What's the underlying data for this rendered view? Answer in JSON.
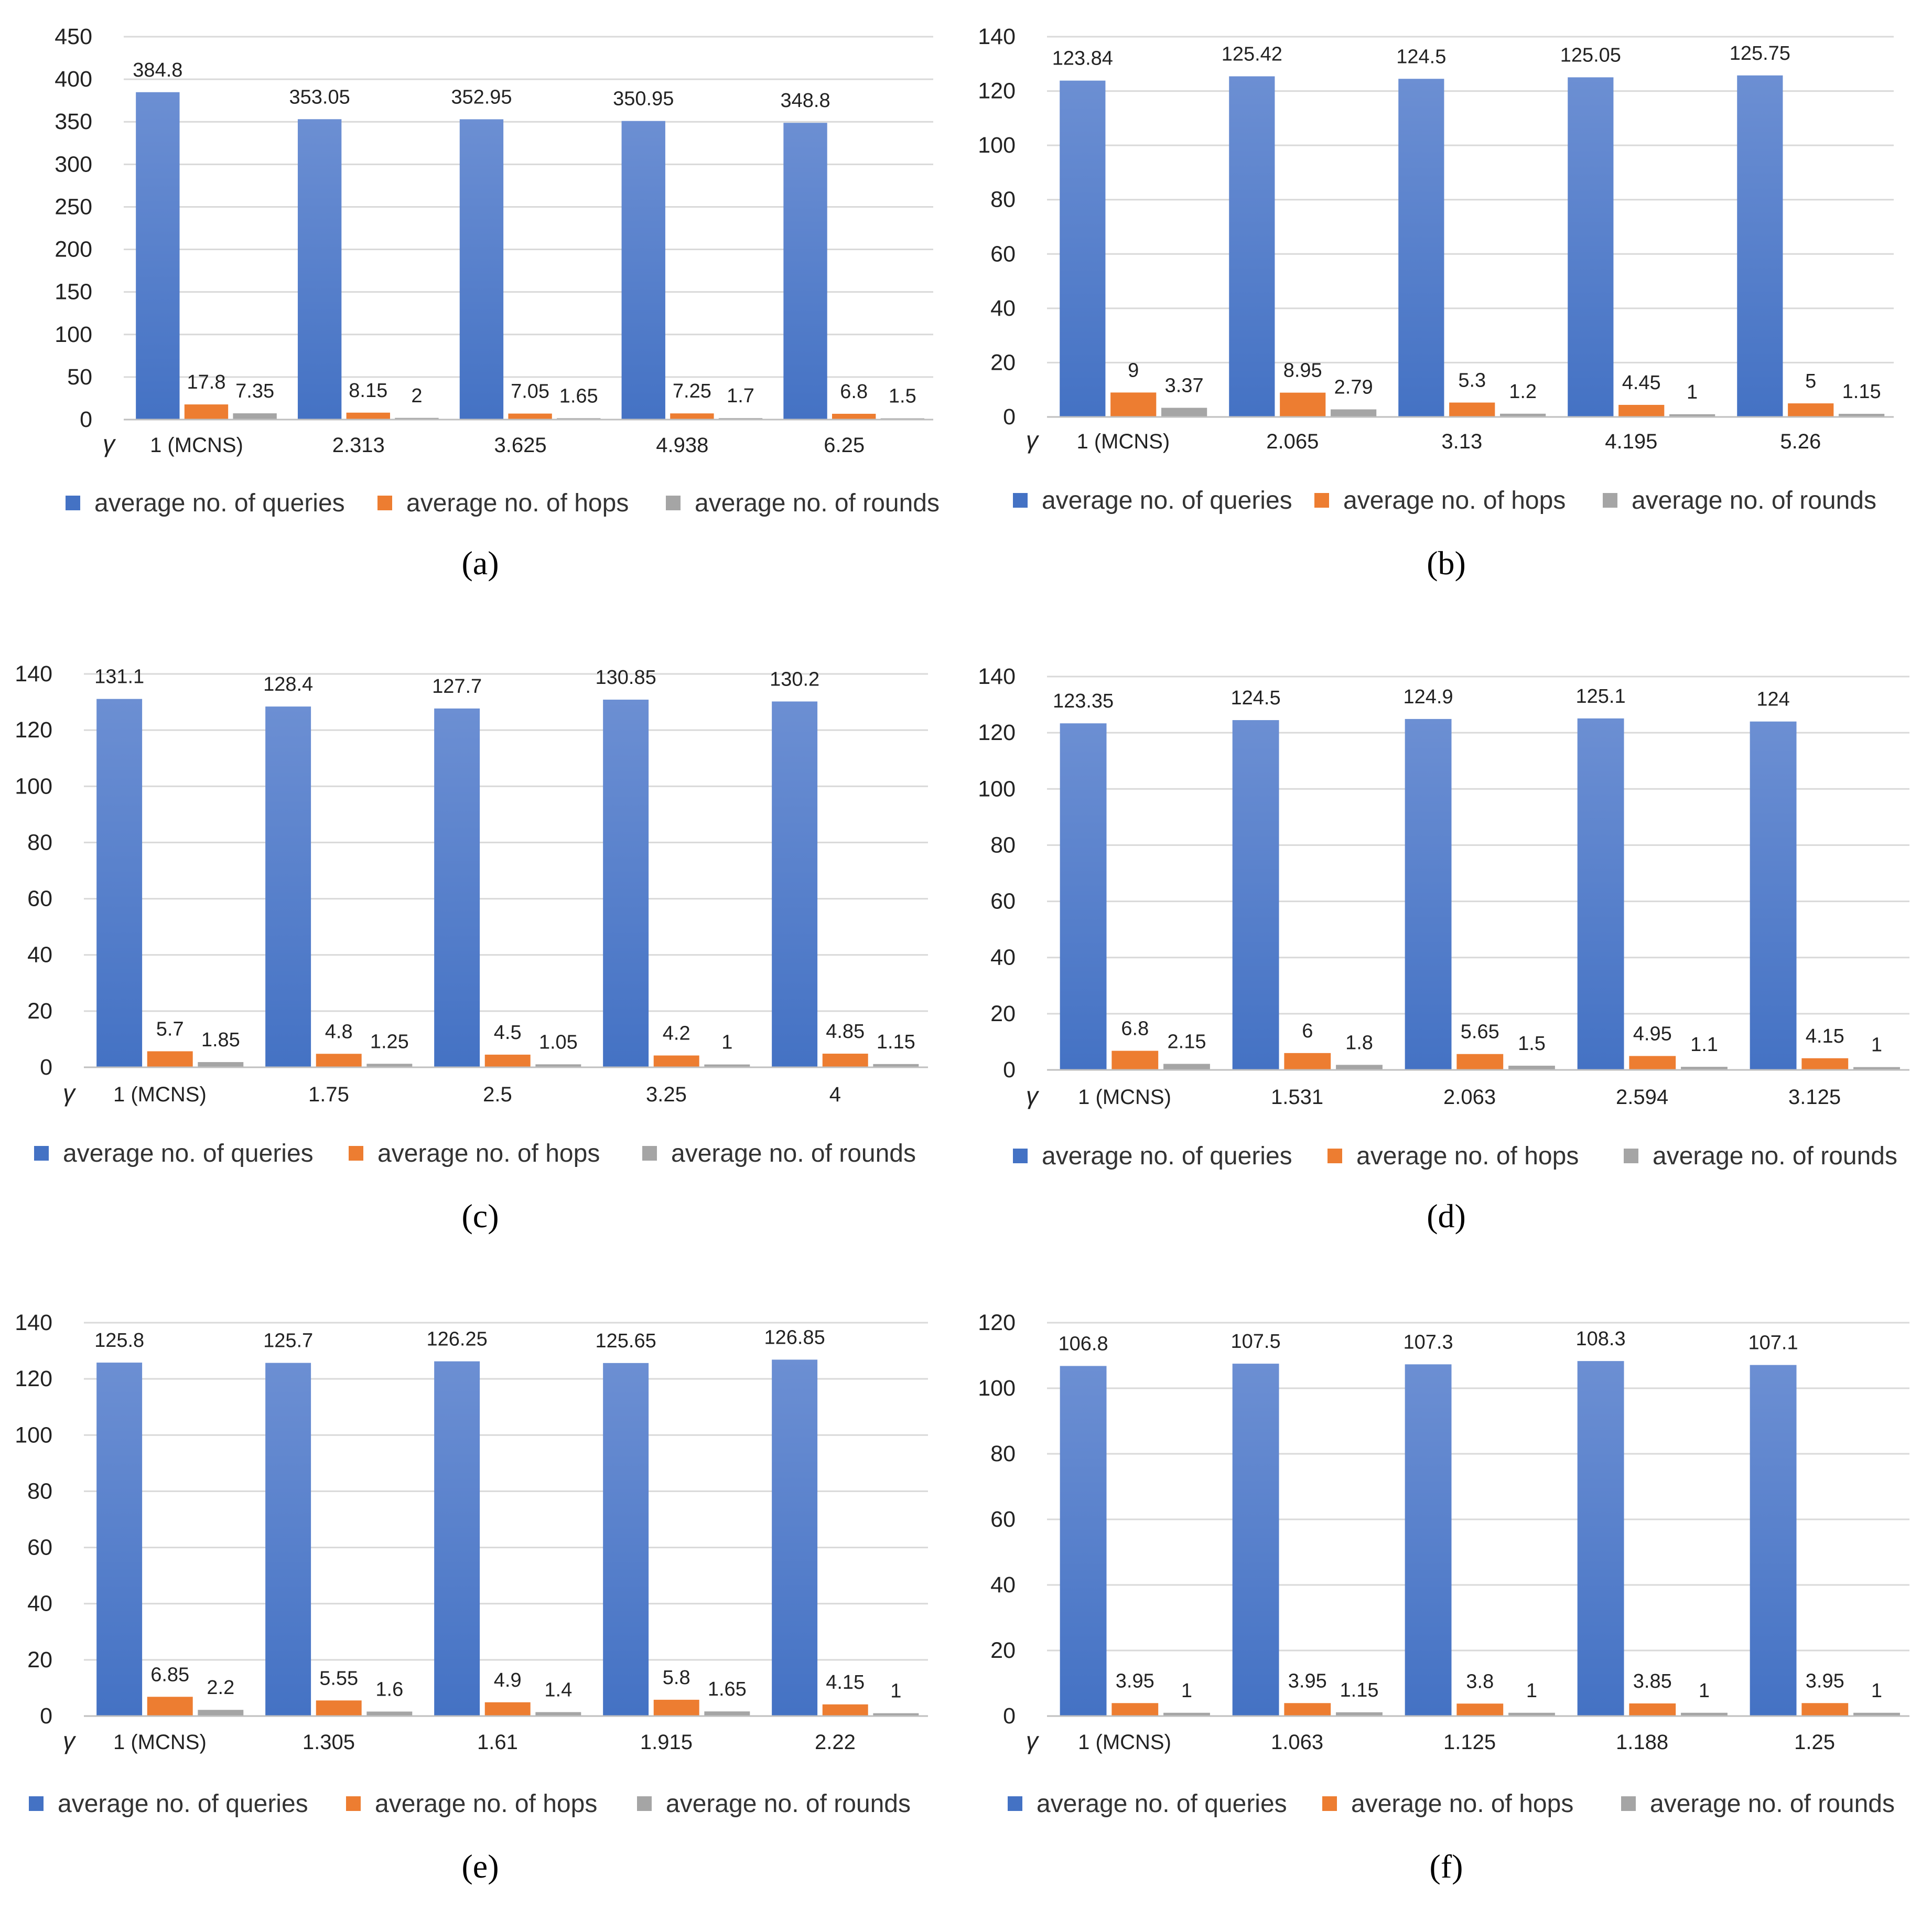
{
  "legend": {
    "queries": "average no. of queries",
    "hops": "average no. of  hops",
    "rounds": "average no. of  rounds"
  },
  "gamma_symbol": "γ",
  "colors": {
    "queries": "#4472C4",
    "queries_light": "#6C8FD3",
    "hops": "#ED7D31",
    "rounds": "#A5A5A5",
    "grid": "#D9D9D9"
  },
  "chart_data": [
    {
      "panel": "(a)",
      "type": "bar",
      "ylim": [
        0,
        450
      ],
      "ystep": 50,
      "categories": [
        "1 (MCNS)",
        "2.313",
        "3.625",
        "4.938",
        "6.25"
      ],
      "series": [
        {
          "name": "average no. of queries",
          "values": [
            384.8,
            353.05,
            352.95,
            350.95,
            348.8
          ],
          "labels": [
            "384.8",
            "353.05",
            "352.95",
            "350.95",
            "348.8"
          ]
        },
        {
          "name": "average no. of  hops",
          "values": [
            17.8,
            8.15,
            7.05,
            7.25,
            6.8
          ],
          "labels": [
            "17.8",
            "8.15",
            "7.05",
            "7.25",
            "6.8"
          ]
        },
        {
          "name": "average no. of  rounds",
          "values": [
            7.35,
            2,
            1.65,
            1.7,
            1.5
          ],
          "labels": [
            "7.35",
            "2",
            "1.65",
            "1.7",
            "1.5"
          ]
        }
      ]
    },
    {
      "panel": "(b)",
      "type": "bar",
      "ylim": [
        0,
        140
      ],
      "ystep": 20,
      "categories": [
        "1 (MCNS)",
        "2.065",
        "3.13",
        "4.195",
        "5.26"
      ],
      "series": [
        {
          "name": "average no. of queries",
          "values": [
            123.84,
            125.42,
            124.5,
            125.05,
            125.75
          ],
          "labels": [
            "123.84",
            "125.42",
            "124.5",
            "125.05",
            "125.75"
          ]
        },
        {
          "name": "average no. of  hops",
          "values": [
            9,
            8.95,
            5.3,
            4.45,
            5
          ],
          "labels": [
            "9",
            "8.95",
            "5.3",
            "4.45",
            "5"
          ]
        },
        {
          "name": "average no. of  rounds",
          "values": [
            3.37,
            2.79,
            1.2,
            1,
            1.15
          ],
          "labels": [
            "3.37",
            "2.79",
            "1.2",
            "1",
            "1.15"
          ]
        }
      ]
    },
    {
      "panel": "(c)",
      "type": "bar",
      "ylim": [
        0,
        140
      ],
      "ystep": 20,
      "categories": [
        "1 (MCNS)",
        "1.75",
        "2.5",
        "3.25",
        "4"
      ],
      "series": [
        {
          "name": "average no. of queries",
          "values": [
            131.1,
            128.4,
            127.7,
            130.85,
            130.2
          ],
          "labels": [
            "131.1",
            "128.4",
            "127.7",
            "130.85",
            "130.2"
          ]
        },
        {
          "name": "average no. of  hops",
          "values": [
            5.7,
            4.8,
            4.5,
            4.2,
            4.85
          ],
          "labels": [
            "5.7",
            "4.8",
            "4.5",
            "4.2",
            "4.85"
          ]
        },
        {
          "name": "average no. of  rounds",
          "values": [
            1.85,
            1.25,
            1.05,
            1,
            1.15
          ],
          "labels": [
            "1.85",
            "1.25",
            "1.05",
            "1",
            "1.15"
          ]
        }
      ]
    },
    {
      "panel": "(d)",
      "type": "bar",
      "ylim": [
        0,
        140
      ],
      "ystep": 20,
      "categories": [
        "1 (MCNS)",
        "1.531",
        "2.063",
        "2.594",
        "3.125"
      ],
      "series": [
        {
          "name": "average no. of queries",
          "values": [
            123.35,
            124.5,
            124.9,
            125.1,
            124
          ],
          "labels": [
            "123.35",
            "124.5",
            "124.9",
            "125.1",
            "124"
          ]
        },
        {
          "name": "average no. of  hops",
          "values": [
            6.8,
            6,
            5.65,
            4.95,
            4.15
          ],
          "labels": [
            "6.8",
            "6",
            "5.65",
            "4.95",
            "4.15"
          ]
        },
        {
          "name": "average no. of  rounds",
          "values": [
            2.15,
            1.8,
            1.5,
            1.1,
            1
          ],
          "labels": [
            "2.15",
            "1.8",
            "1.5",
            "1.1",
            "1"
          ]
        }
      ]
    },
    {
      "panel": "(e)",
      "type": "bar",
      "ylim": [
        0,
        140
      ],
      "ystep": 20,
      "categories": [
        "1 (MCNS)",
        "1.305",
        "1.61",
        "1.915",
        "2.22"
      ],
      "series": [
        {
          "name": "average no. of queries",
          "values": [
            125.8,
            125.7,
            126.25,
            125.65,
            126.85
          ],
          "labels": [
            "125.8",
            "125.7",
            "126.25",
            "125.65",
            "126.85"
          ]
        },
        {
          "name": "average no. of  hops",
          "values": [
            6.85,
            5.55,
            4.9,
            5.8,
            4.15
          ],
          "labels": [
            "6.85",
            "5.55",
            "4.9",
            "5.8",
            "4.15"
          ]
        },
        {
          "name": "average no. of  rounds",
          "values": [
            2.2,
            1.6,
            1.4,
            1.65,
            1
          ],
          "labels": [
            "2.2",
            "1.6",
            "1.4",
            "1.65",
            "1"
          ]
        }
      ]
    },
    {
      "panel": "(f)",
      "type": "bar",
      "ylim": [
        0,
        120
      ],
      "ystep": 20,
      "categories": [
        "1 (MCNS)",
        "1.063",
        "1.125",
        "1.188",
        "1.25"
      ],
      "series": [
        {
          "name": "average no. of queries",
          "values": [
            106.8,
            107.5,
            107.3,
            108.3,
            107.1
          ],
          "labels": [
            "106.8",
            "107.5",
            "107.3",
            "108.3",
            "107.1"
          ]
        },
        {
          "name": "average no. of  hops",
          "values": [
            3.95,
            3.95,
            3.8,
            3.85,
            3.95
          ],
          "labels": [
            "3.95",
            "3.95",
            "3.8",
            "3.85",
            "3.95"
          ]
        },
        {
          "name": "average no. of  rounds",
          "values": [
            1,
            1.15,
            1,
            1,
            1
          ],
          "labels": [
            "1",
            "1.15",
            "1",
            "1",
            "1"
          ]
        }
      ]
    }
  ]
}
